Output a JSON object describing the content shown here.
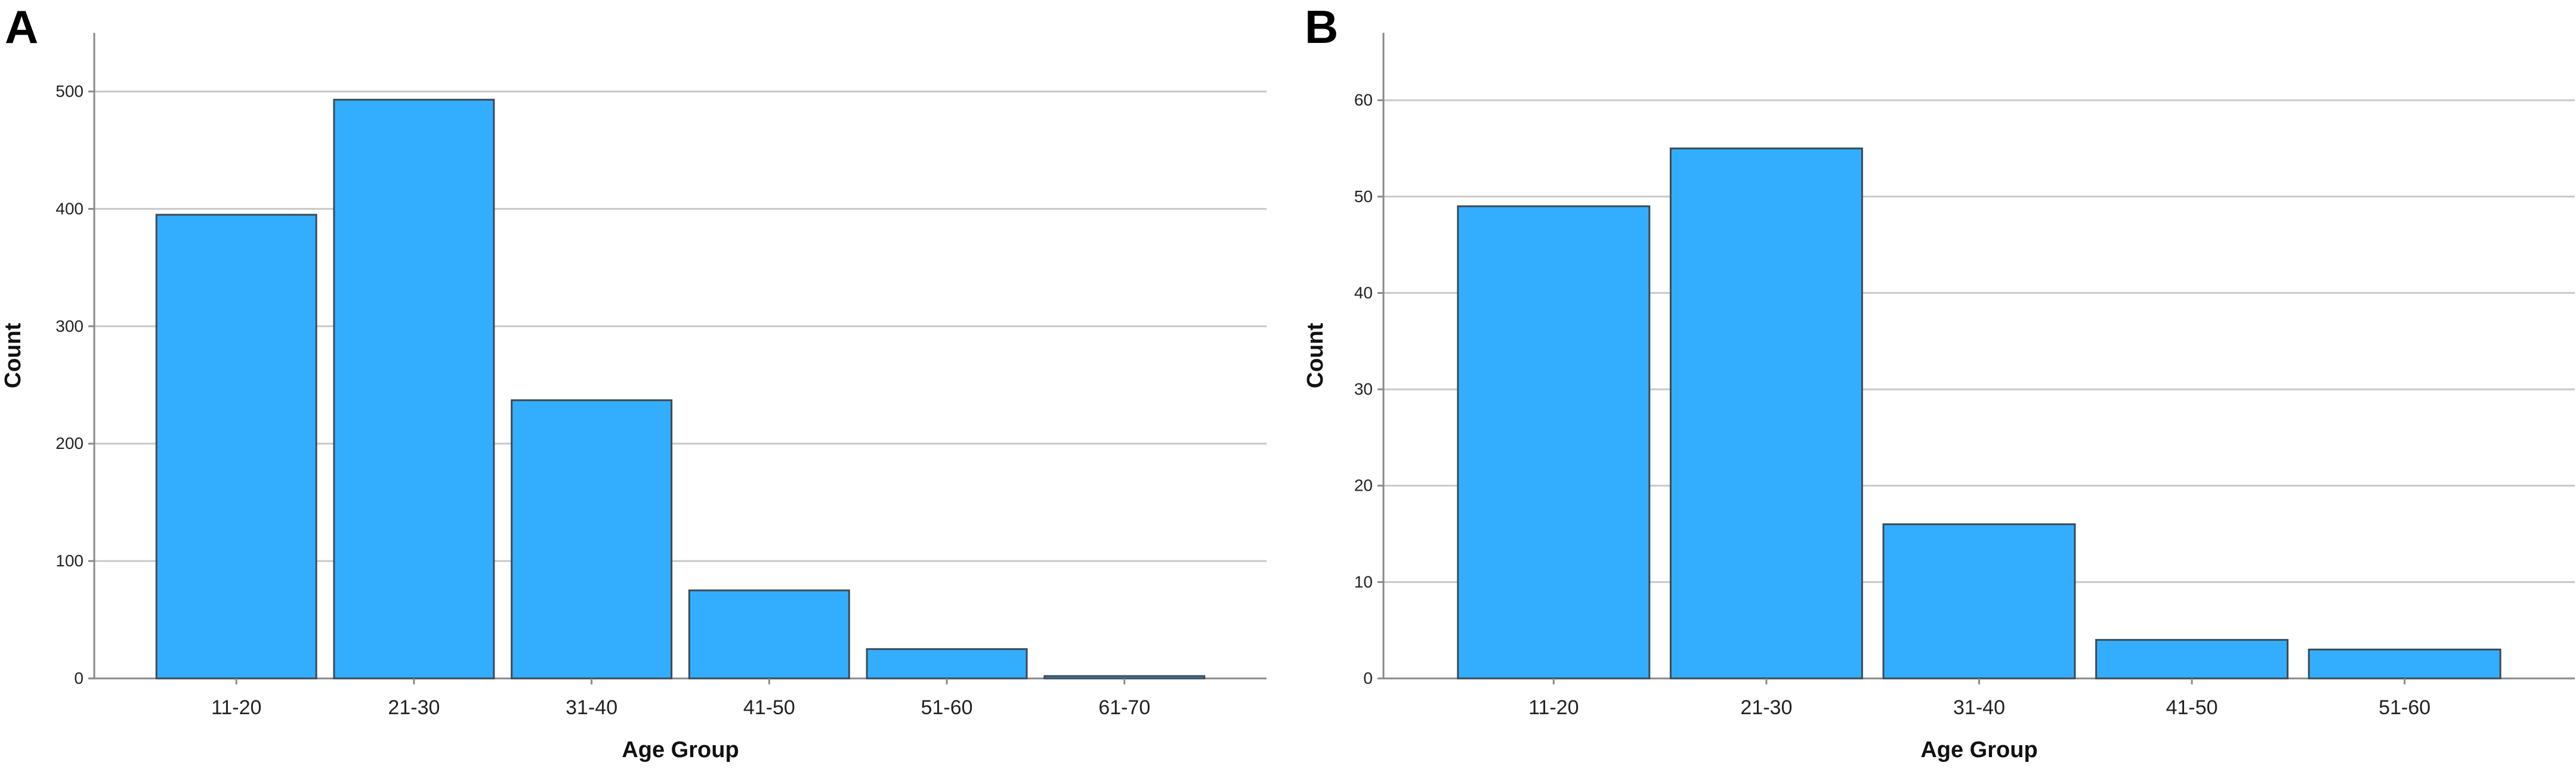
{
  "panels": [
    {
      "label": "A",
      "chart_data": {
        "type": "bar",
        "categories": [
          "11-20",
          "21-30",
          "31-40",
          "41-50",
          "51-60",
          "61-70"
        ],
        "values": [
          395,
          493,
          237,
          75,
          25,
          2
        ],
        "xlabel": "Age Group",
        "ylabel": "Count",
        "ylim": [
          0,
          550
        ],
        "yticks": [
          0,
          100,
          200,
          300,
          400,
          500
        ],
        "grid": true,
        "bar_color": "#33AEFF",
        "bar_edge_color": "#3C4A55"
      }
    },
    {
      "label": "B",
      "chart_data": {
        "type": "bar",
        "categories": [
          "11-20",
          "21-30",
          "31-40",
          "41-50",
          "51-60"
        ],
        "values": [
          49,
          55,
          16,
          4,
          3
        ],
        "xlabel": "Age Group",
        "ylabel": "Count",
        "ylim": [
          0,
          67
        ],
        "yticks": [
          0,
          10,
          20,
          30,
          40,
          50,
          60
        ],
        "grid": true,
        "bar_color": "#33AEFF",
        "bar_edge_color": "#3C4A55"
      }
    }
  ]
}
